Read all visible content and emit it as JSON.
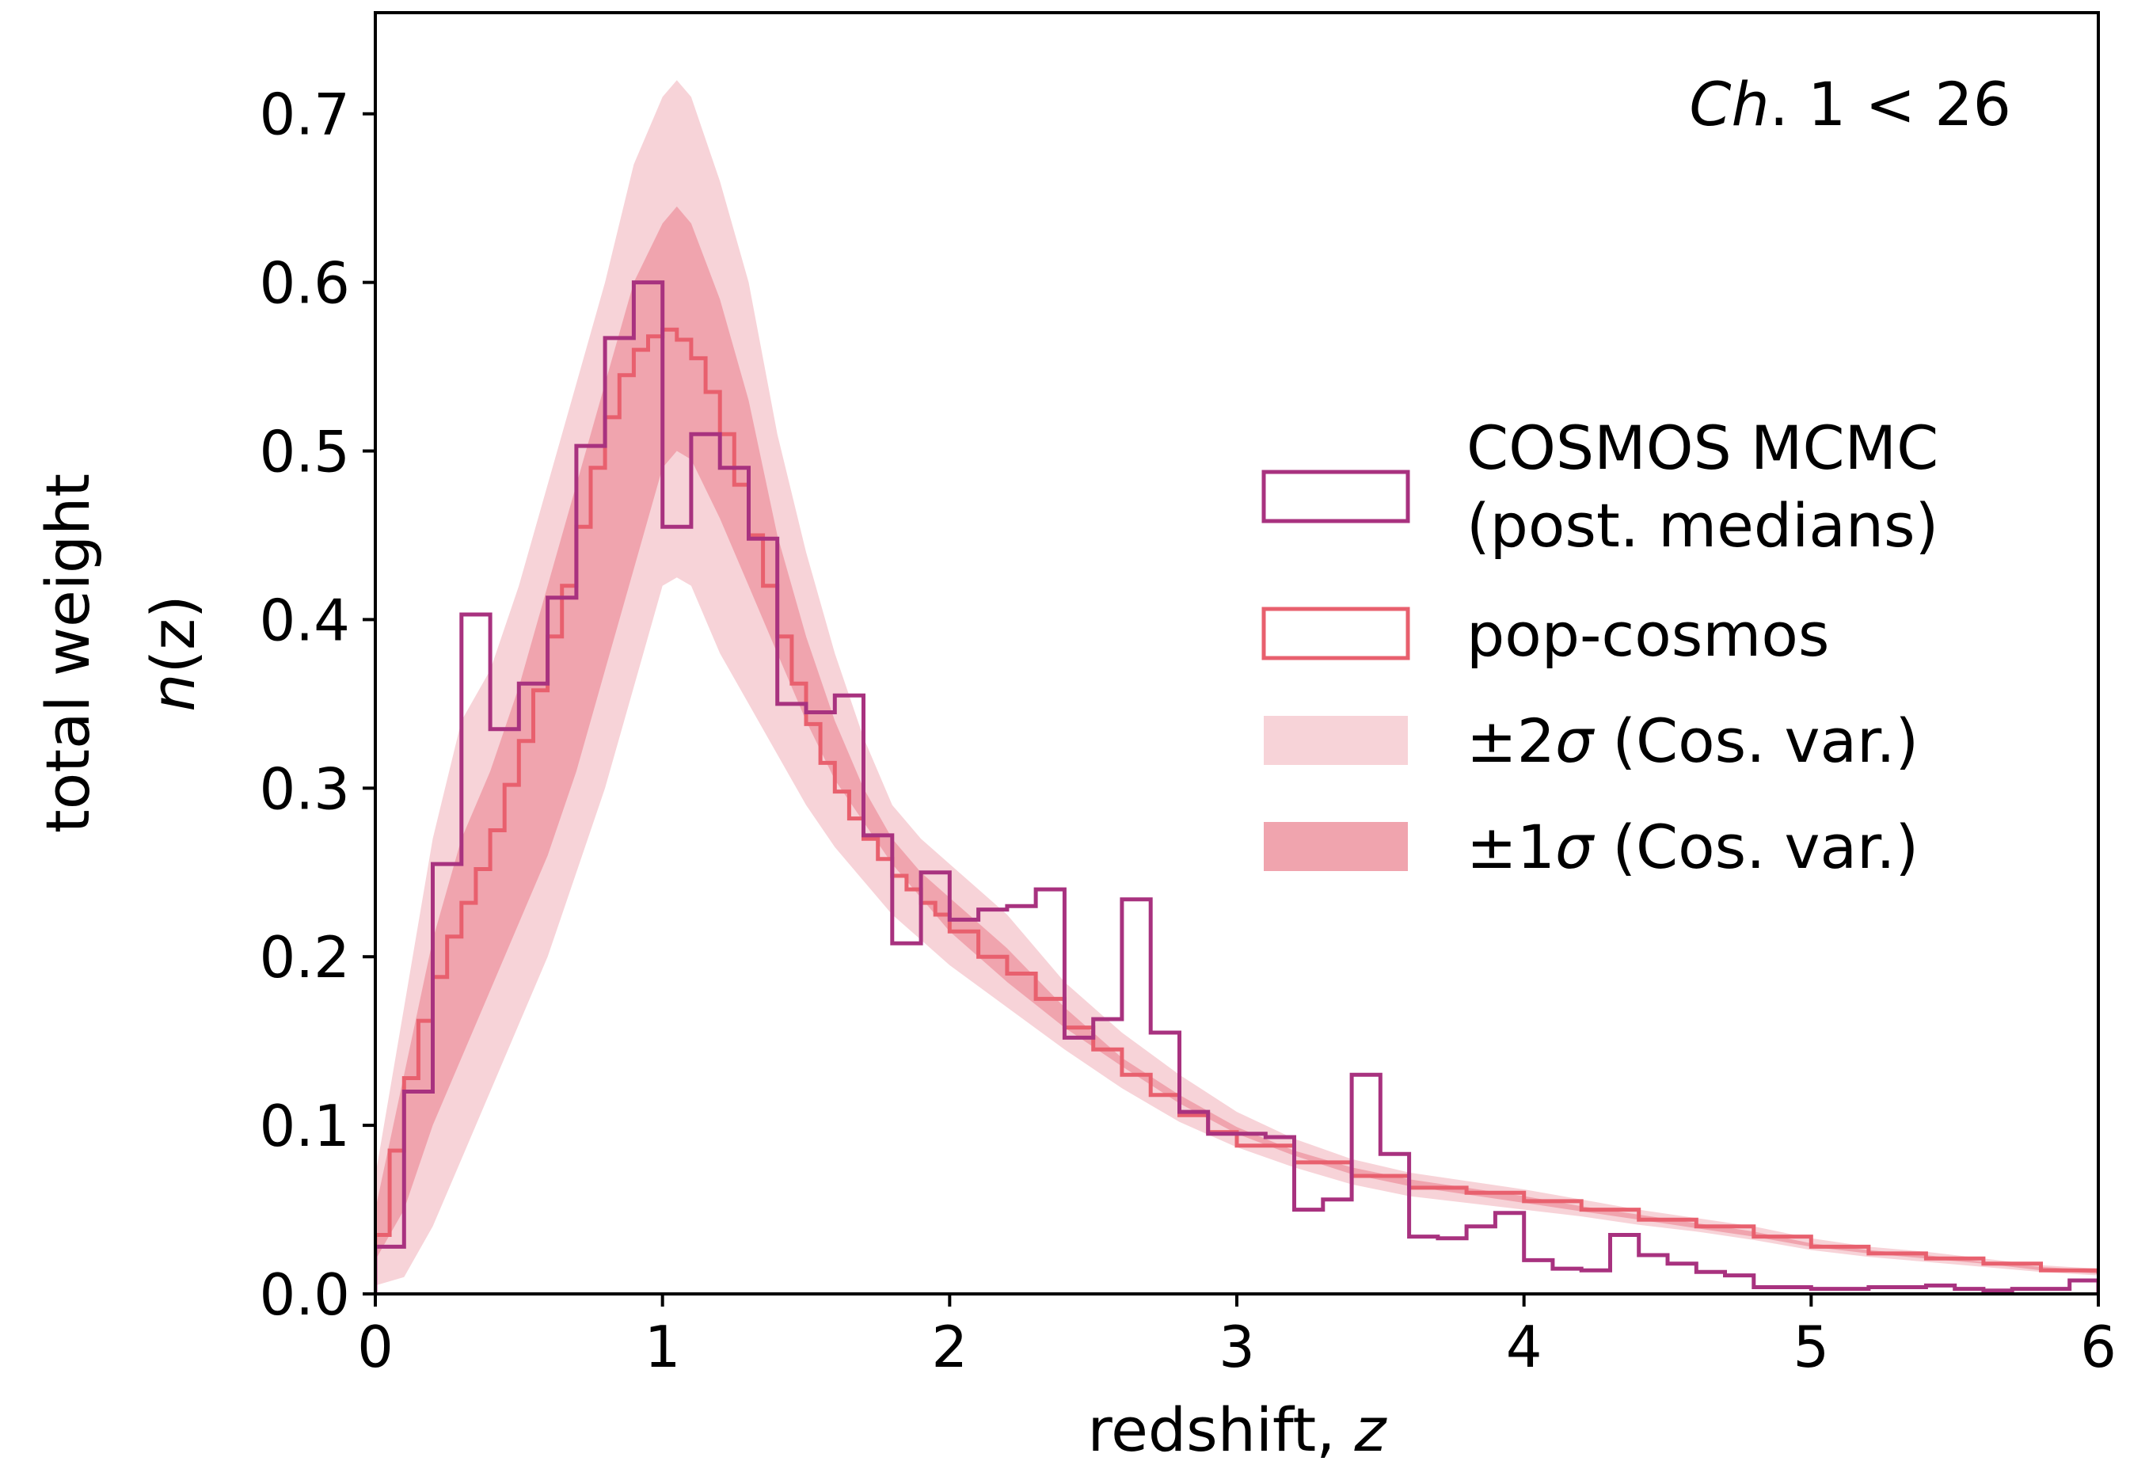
{
  "chart_data": {
    "type": "step",
    "xlabel": "redshift, ",
    "xlabel_var": "z",
    "ylabel_outer": "total weight",
    "ylabel_inner_pre": "n",
    "ylabel_inner_post": "(z)",
    "annotation_italic": "Ch",
    "annotation_rest": ". 1 < 26",
    "xlim": [
      0,
      6
    ],
    "ylim": [
      0,
      0.76
    ],
    "xticks": [
      0,
      1,
      2,
      3,
      4,
      5,
      6
    ],
    "xtick_labels": [
      "0",
      "1",
      "2",
      "3",
      "4",
      "5",
      "6"
    ],
    "yticks": [
      0.0,
      0.1,
      0.2,
      0.3,
      0.4,
      0.5,
      0.6,
      0.7
    ],
    "ytick_labels": [
      "0.0",
      "0.1",
      "0.2",
      "0.3",
      "0.4",
      "0.5",
      "0.6",
      "0.7"
    ],
    "grid": false,
    "legend_position": "center-right",
    "colors": {
      "cosmos": "#a8327f",
      "popcosmos": "#e8606e",
      "sigma2": "#f7d3d8",
      "sigma1": "#f0a4ae"
    },
    "legend": [
      {
        "label_line1": "COSMOS MCMC",
        "label_line2": "(post. medians)"
      },
      {
        "label_line1": "pop-cosmos"
      },
      {
        "label_pre": "±2",
        "label_sym": "σ",
        "label_post": " (Cos. var.)"
      },
      {
        "label_pre": "±1",
        "label_sym": "σ",
        "label_post": " (Cos. var.)"
      }
    ],
    "cosmos_mcmc": {
      "name": "COSMOS MCMC (post. medians)",
      "edges": [
        0,
        0.1,
        0.2,
        0.3,
        0.4,
        0.5,
        0.6,
        0.7,
        0.8,
        0.9,
        1.0,
        1.1,
        1.2,
        1.3,
        1.4,
        1.5,
        1.6,
        1.7,
        1.8,
        1.9,
        2.0,
        2.1,
        2.2,
        2.3,
        2.4,
        2.5,
        2.6,
        2.7,
        2.8,
        2.9,
        3.0,
        3.1,
        3.2,
        3.3,
        3.4,
        3.5,
        3.6,
        3.7,
        3.8,
        3.9,
        4.0,
        4.1,
        4.2,
        4.3,
        4.4,
        4.5,
        4.6,
        4.7,
        4.8,
        4.9,
        5.0,
        5.1,
        5.2,
        5.3,
        5.4,
        5.5,
        5.6,
        5.7,
        5.8,
        5.9,
        6.0
      ],
      "values": [
        0.028,
        0.12,
        0.255,
        0.403,
        0.335,
        0.362,
        0.413,
        0.503,
        0.567,
        0.6,
        0.455,
        0.51,
        0.49,
        0.448,
        0.35,
        0.345,
        0.355,
        0.272,
        0.208,
        0.25,
        0.222,
        0.228,
        0.23,
        0.24,
        0.152,
        0.163,
        0.234,
        0.155,
        0.108,
        0.095,
        0.095,
        0.093,
        0.05,
        0.056,
        0.13,
        0.083,
        0.034,
        0.033,
        0.04,
        0.048,
        0.02,
        0.015,
        0.014,
        0.035,
        0.023,
        0.018,
        0.013,
        0.011,
        0.004,
        0.004,
        0.003,
        0.003,
        0.004,
        0.004,
        0.005,
        0.003,
        0.002,
        0.003,
        0.003,
        0.008
      ]
    },
    "pop_cosmos": {
      "name": "pop-cosmos",
      "edges": [
        0,
        0.05,
        0.1,
        0.15,
        0.2,
        0.25,
        0.3,
        0.35,
        0.4,
        0.45,
        0.5,
        0.55,
        0.6,
        0.65,
        0.7,
        0.75,
        0.8,
        0.85,
        0.9,
        0.95,
        1.0,
        1.05,
        1.1,
        1.15,
        1.2,
        1.25,
        1.3,
        1.35,
        1.4,
        1.45,
        1.5,
        1.55,
        1.6,
        1.65,
        1.7,
        1.75,
        1.8,
        1.85,
        1.9,
        1.95,
        2.0,
        2.1,
        2.2,
        2.3,
        2.4,
        2.5,
        2.6,
        2.7,
        2.8,
        2.9,
        3.0,
        3.2,
        3.4,
        3.6,
        3.8,
        4.0,
        4.2,
        4.4,
        4.6,
        4.8,
        5.0,
        5.2,
        5.4,
        5.6,
        5.8,
        6.0
      ],
      "values": [
        0.035,
        0.085,
        0.128,
        0.162,
        0.188,
        0.212,
        0.232,
        0.252,
        0.275,
        0.302,
        0.328,
        0.358,
        0.39,
        0.42,
        0.455,
        0.49,
        0.52,
        0.545,
        0.56,
        0.568,
        0.572,
        0.566,
        0.555,
        0.535,
        0.51,
        0.48,
        0.45,
        0.42,
        0.39,
        0.362,
        0.338,
        0.315,
        0.298,
        0.282,
        0.27,
        0.258,
        0.248,
        0.24,
        0.232,
        0.225,
        0.215,
        0.2,
        0.19,
        0.175,
        0.158,
        0.145,
        0.13,
        0.118,
        0.106,
        0.096,
        0.088,
        0.078,
        0.07,
        0.063,
        0.06,
        0.055,
        0.05,
        0.044,
        0.04,
        0.034,
        0.028,
        0.024,
        0.021,
        0.018,
        0.014,
        0.012
      ]
    },
    "band_2sigma": {
      "x": [
        0,
        0.1,
        0.2,
        0.3,
        0.4,
        0.5,
        0.6,
        0.7,
        0.8,
        0.9,
        1.0,
        1.05,
        1.1,
        1.2,
        1.3,
        1.4,
        1.5,
        1.6,
        1.7,
        1.8,
        1.9,
        2.0,
        2.2,
        2.4,
        2.6,
        2.8,
        3.0,
        3.2,
        3.4,
        3.6,
        3.8,
        4.0,
        4.2,
        4.4,
        4.6,
        4.8,
        5.0,
        5.2,
        5.4,
        5.6,
        5.8,
        6.0
      ],
      "upper": [
        0.07,
        0.17,
        0.27,
        0.34,
        0.37,
        0.42,
        0.48,
        0.54,
        0.6,
        0.67,
        0.71,
        0.72,
        0.71,
        0.66,
        0.6,
        0.51,
        0.44,
        0.38,
        0.33,
        0.29,
        0.27,
        0.255,
        0.225,
        0.185,
        0.155,
        0.13,
        0.108,
        0.092,
        0.08,
        0.072,
        0.067,
        0.062,
        0.056,
        0.05,
        0.045,
        0.04,
        0.033,
        0.028,
        0.025,
        0.021,
        0.017,
        0.015
      ],
      "lower": [
        0.005,
        0.01,
        0.04,
        0.08,
        0.12,
        0.16,
        0.2,
        0.25,
        0.3,
        0.36,
        0.42,
        0.425,
        0.42,
        0.38,
        0.35,
        0.32,
        0.29,
        0.265,
        0.245,
        0.225,
        0.21,
        0.195,
        0.17,
        0.145,
        0.122,
        0.102,
        0.087,
        0.075,
        0.065,
        0.058,
        0.054,
        0.05,
        0.046,
        0.041,
        0.037,
        0.032,
        0.026,
        0.022,
        0.019,
        0.016,
        0.013,
        0.011
      ]
    },
    "band_1sigma": {
      "x": [
        0,
        0.1,
        0.2,
        0.3,
        0.4,
        0.5,
        0.6,
        0.7,
        0.8,
        0.9,
        1.0,
        1.05,
        1.1,
        1.2,
        1.3,
        1.4,
        1.5,
        1.6,
        1.7,
        1.8,
        1.9,
        2.0,
        2.2,
        2.4,
        2.6,
        2.8,
        3.0,
        3.2,
        3.4,
        3.6,
        3.8,
        4.0,
        4.2,
        4.4,
        4.6,
        4.8,
        5.0,
        5.2,
        5.4,
        5.6,
        5.8,
        6.0
      ],
      "upper": [
        0.05,
        0.13,
        0.21,
        0.27,
        0.31,
        0.36,
        0.42,
        0.48,
        0.54,
        0.6,
        0.635,
        0.645,
        0.635,
        0.59,
        0.53,
        0.45,
        0.39,
        0.34,
        0.3,
        0.27,
        0.25,
        0.235,
        0.205,
        0.17,
        0.14,
        0.118,
        0.099,
        0.085,
        0.075,
        0.068,
        0.063,
        0.058,
        0.052,
        0.047,
        0.042,
        0.037,
        0.03,
        0.026,
        0.023,
        0.019,
        0.016,
        0.014
      ],
      "lower": [
        0.02,
        0.05,
        0.1,
        0.14,
        0.18,
        0.22,
        0.26,
        0.31,
        0.37,
        0.43,
        0.49,
        0.5,
        0.495,
        0.46,
        0.42,
        0.38,
        0.34,
        0.305,
        0.28,
        0.255,
        0.235,
        0.215,
        0.185,
        0.158,
        0.135,
        0.113,
        0.095,
        0.082,
        0.071,
        0.064,
        0.059,
        0.054,
        0.049,
        0.044,
        0.039,
        0.034,
        0.028,
        0.024,
        0.021,
        0.018,
        0.014,
        0.012
      ]
    }
  }
}
